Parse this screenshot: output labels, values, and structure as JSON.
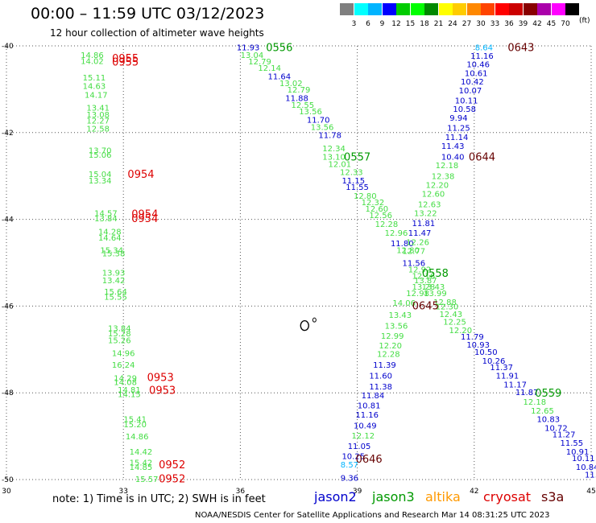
{
  "header": {
    "title": "00:00 – 11:59 UTC 03/12/2023",
    "subtitle": "12 hour collection of altimeter wave heights"
  },
  "colorbar": {
    "labels": [
      "3",
      "6",
      "9",
      "12",
      "15",
      "18",
      "21",
      "24",
      "27",
      "30",
      "33",
      "36",
      "39",
      "42",
      "45",
      "70"
    ],
    "colors": [
      "#7f7f7f",
      "#00ffff",
      "#00b4ff",
      "#0000ff",
      "#00cc00",
      "#00ff00",
      "#008800",
      "#ffff00",
      "#ffcc00",
      "#ff8800",
      "#ff4400",
      "#ff0000",
      "#cc0000",
      "#880000",
      "#aa00aa",
      "#ff00ff",
      "#000000"
    ],
    "unit": "(ft)"
  },
  "footer": {
    "note": "note: 1) Time is in UTC; 2) SWH is in feet",
    "credit": "NOAA/NESDIS Center for Satellite Applications and Research    Mar 14 08:31:25 UTC 2023",
    "satellites": [
      {
        "name": "jason2",
        "color": "#0000cc"
      },
      {
        "name": "jason3",
        "color": "#009900"
      },
      {
        "name": "altika",
        "color": "#ff9900"
      },
      {
        "name": "cryosat",
        "color": "#dd0000"
      },
      {
        "name": "s3a",
        "color": "#660000"
      }
    ]
  },
  "chart_data": {
    "type": "scatter",
    "title": "00:00 – 11:59 UTC 03/12/2023",
    "xlabel": "",
    "ylabel": "",
    "xlim": [
      30,
      45
    ],
    "ylim": [
      -50,
      -40
    ],
    "xticks": [
      "30",
      "33",
      "36",
      "39",
      "42",
      "45"
    ],
    "yticks": [
      "-40",
      "-42",
      "-44",
      "-46",
      "-48",
      "-50"
    ],
    "grid": "dotted",
    "land": [
      {
        "name": "small islands",
        "points": [
          [
            37.65,
            -46.45
          ],
          [
            37.9,
            -46.32
          ]
        ]
      }
    ],
    "series": [
      {
        "name": "cryosat",
        "color": "#dd0000",
        "label_color": "#44dd44",
        "times": [
          {
            "text": "0955",
            "lon": 33.05,
            "lat": -40.28
          },
          {
            "text": "0955",
            "lon": 33.05,
            "lat": -40.36
          },
          {
            "text": "0954",
            "lon": 33.45,
            "lat": -42.95
          },
          {
            "text": "0954",
            "lon": 33.55,
            "lat": -43.87
          },
          {
            "text": "0954",
            "lon": 33.55,
            "lat": -43.97
          },
          {
            "text": "0953",
            "lon": 33.95,
            "lat": -47.63
          },
          {
            "text": "0953",
            "lon": 34.0,
            "lat": -47.93
          },
          {
            "text": "0952",
            "lon": 34.25,
            "lat": -49.65
          },
          {
            "text": "0952",
            "lon": 34.25,
            "lat": -49.97
          }
        ],
        "points": [
          {
            "lon": 32.2,
            "lat": -40.2,
            "v": "14.86"
          },
          {
            "lon": 32.2,
            "lat": -40.34,
            "v": "14.02"
          },
          {
            "lon": 32.25,
            "lat": -40.72,
            "v": "15.11"
          },
          {
            "lon": 32.25,
            "lat": -40.92,
            "v": "14.63"
          },
          {
            "lon": 32.3,
            "lat": -41.12,
            "v": "14.17"
          },
          {
            "lon": 32.35,
            "lat": -41.42,
            "v": "13.41"
          },
          {
            "lon": 32.35,
            "lat": -41.58,
            "v": "13.08"
          },
          {
            "lon": 32.35,
            "lat": -41.72,
            "v": "12.27"
          },
          {
            "lon": 32.35,
            "lat": -41.9,
            "v": "12.58"
          },
          {
            "lon": 32.4,
            "lat": -42.4,
            "v": "13.70"
          },
          {
            "lon": 32.4,
            "lat": -42.5,
            "v": "15.06"
          },
          {
            "lon": 32.4,
            "lat": -42.95,
            "v": "15.04"
          },
          {
            "lon": 32.4,
            "lat": -43.1,
            "v": "13.34"
          },
          {
            "lon": 32.55,
            "lat": -43.85,
            "v": "14.57"
          },
          {
            "lon": 32.55,
            "lat": -43.97,
            "v": "13.84"
          },
          {
            "lon": 32.65,
            "lat": -44.28,
            "v": "14.28"
          },
          {
            "lon": 32.65,
            "lat": -44.42,
            "v": "14.64"
          },
          {
            "lon": 32.7,
            "lat": -44.7,
            "v": "15.34"
          },
          {
            "lon": 32.75,
            "lat": -44.78,
            "v": "15.38"
          },
          {
            "lon": 32.75,
            "lat": -45.22,
            "v": "13.93"
          },
          {
            "lon": 32.75,
            "lat": -45.4,
            "v": "13.42"
          },
          {
            "lon": 32.8,
            "lat": -45.66,
            "v": "15.64"
          },
          {
            "lon": 32.8,
            "lat": -45.78,
            "v": "15.55"
          },
          {
            "lon": 32.9,
            "lat": -46.5,
            "v": "13.84"
          },
          {
            "lon": 32.9,
            "lat": -46.62,
            "v": "15.28"
          },
          {
            "lon": 32.9,
            "lat": -46.78,
            "v": "15.26"
          },
          {
            "lon": 33.0,
            "lat": -47.08,
            "v": "14.96"
          },
          {
            "lon": 33.0,
            "lat": -47.35,
            "v": "16.24"
          },
          {
            "lon": 33.05,
            "lat": -47.65,
            "v": "14.29"
          },
          {
            "lon": 33.05,
            "lat": -47.75,
            "v": "14.08"
          },
          {
            "lon": 33.15,
            "lat": -47.92,
            "v": "14.81"
          },
          {
            "lon": 33.15,
            "lat": -48.02,
            "v": "14.15"
          },
          {
            "lon": 33.3,
            "lat": -48.6,
            "v": "15.41"
          },
          {
            "lon": 33.3,
            "lat": -48.72,
            "v": "15.20"
          },
          {
            "lon": 33.35,
            "lat": -49.0,
            "v": "14.86"
          },
          {
            "lon": 33.45,
            "lat": -49.35,
            "v": "14.42"
          },
          {
            "lon": 33.45,
            "lat": -49.6,
            "v": "15.42"
          },
          {
            "lon": 33.45,
            "lat": -49.7,
            "v": "14.85"
          },
          {
            "lon": 33.6,
            "lat": -49.98,
            "v": "15.57"
          }
        ]
      },
      {
        "name": "jason3",
        "color": "#009900",
        "times": [
          {
            "text": "0556",
            "lon": 37.0,
            "lat": -40.03
          },
          {
            "text": "0557",
            "lon": 39.0,
            "lat": -42.55
          },
          {
            "text": "0558",
            "lon": 41.0,
            "lat": -45.23
          },
          {
            "text": "0559",
            "lon": 43.9,
            "lat": -48.0
          }
        ],
        "points": [
          {
            "lon": 36.2,
            "lat": -40.03,
            "v": "11.93",
            "c": "#0000cc"
          },
          {
            "lon": 36.3,
            "lat": -40.2,
            "v": "13.04"
          },
          {
            "lon": 36.5,
            "lat": -40.35,
            "v": "12.79"
          },
          {
            "lon": 36.75,
            "lat": -40.5,
            "v": "12.14"
          },
          {
            "lon": 37.0,
            "lat": -40.7,
            "v": "11.64",
            "c": "#0000cc"
          },
          {
            "lon": 37.3,
            "lat": -40.85,
            "v": "13.02"
          },
          {
            "lon": 37.5,
            "lat": -41.0,
            "v": "12.79"
          },
          {
            "lon": 37.45,
            "lat": -41.2,
            "v": "11.88",
            "c": "#0000cc"
          },
          {
            "lon": 37.6,
            "lat": -41.35,
            "v": "12.55"
          },
          {
            "lon": 37.8,
            "lat": -41.5,
            "v": "13.56"
          },
          {
            "lon": 38.0,
            "lat": -41.7,
            "v": "11.70",
            "c": "#0000cc"
          },
          {
            "lon": 38.1,
            "lat": -41.86,
            "v": "13.56"
          },
          {
            "lon": 38.3,
            "lat": -42.05,
            "v": "11.78",
            "c": "#0000cc"
          },
          {
            "lon": 38.4,
            "lat": -42.36,
            "v": "12.34"
          },
          {
            "lon": 38.4,
            "lat": -42.55,
            "v": "13.10"
          },
          {
            "lon": 38.55,
            "lat": -42.72,
            "v": "12.01"
          },
          {
            "lon": 38.85,
            "lat": -42.9,
            "v": "12.33"
          },
          {
            "lon": 38.9,
            "lat": -43.1,
            "v": "11.15",
            "c": "#0000cc"
          },
          {
            "lon": 39.0,
            "lat": -43.25,
            "v": "11.55",
            "c": "#0000cc"
          },
          {
            "lon": 39.2,
            "lat": -43.45,
            "v": "12.80"
          },
          {
            "lon": 39.4,
            "lat": -43.6,
            "v": "12.32"
          },
          {
            "lon": 39.5,
            "lat": -43.75,
            "v": "12.60"
          },
          {
            "lon": 39.6,
            "lat": -43.9,
            "v": "12.56"
          },
          {
            "lon": 39.75,
            "lat": -44.1,
            "v": "12.28"
          },
          {
            "lon": 40.0,
            "lat": -44.3,
            "v": "12.96"
          },
          {
            "lon": 40.15,
            "lat": -44.55,
            "v": "11.80",
            "c": "#0000cc"
          },
          {
            "lon": 40.3,
            "lat": -44.7,
            "v": "12.80"
          },
          {
            "lon": 40.45,
            "lat": -45.0,
            "v": "11.56",
            "c": "#0000cc"
          },
          {
            "lon": 40.6,
            "lat": -45.15,
            "v": "12.92"
          },
          {
            "lon": 40.7,
            "lat": -45.3,
            "v": "12.16"
          },
          {
            "lon": 40.75,
            "lat": -45.4,
            "v": "13.87"
          },
          {
            "lon": 40.7,
            "lat": -45.55,
            "v": "13.28"
          },
          {
            "lon": 40.95,
            "lat": -45.55,
            "v": "13.43"
          },
          {
            "lon": 40.55,
            "lat": -45.7,
            "v": "12.98"
          },
          {
            "lon": 41.0,
            "lat": -45.7,
            "v": "13.99"
          },
          {
            "lon": 41.25,
            "lat": -45.9,
            "v": "12.88"
          },
          {
            "lon": 41.3,
            "lat": -46.0,
            "v": "12.30"
          },
          {
            "lon": 41.4,
            "lat": -46.18,
            "v": "12.43"
          },
          {
            "lon": 41.5,
            "lat": -46.35,
            "v": "12.25"
          },
          {
            "lon": 41.65,
            "lat": -46.55,
            "v": "12.20"
          },
          {
            "lon": 41.95,
            "lat": -46.7,
            "v": "11.79",
            "c": "#0000cc"
          },
          {
            "lon": 42.1,
            "lat": -46.88,
            "v": "10.93",
            "c": "#0000cc"
          },
          {
            "lon": 42.3,
            "lat": -47.05,
            "v": "10.50",
            "c": "#0000cc"
          },
          {
            "lon": 42.5,
            "lat": -47.25,
            "v": "10.26",
            "c": "#0000cc"
          },
          {
            "lon": 42.7,
            "lat": -47.4,
            "v": "11.37",
            "c": "#0000cc"
          },
          {
            "lon": 42.85,
            "lat": -47.6,
            "v": "11.91",
            "c": "#0000cc"
          },
          {
            "lon": 43.05,
            "lat": -47.8,
            "v": "11.17",
            "c": "#0000cc"
          },
          {
            "lon": 43.35,
            "lat": -47.98,
            "v": "11.87",
            "c": "#0000cc"
          },
          {
            "lon": 43.55,
            "lat": -48.2,
            "v": "12.18"
          },
          {
            "lon": 43.75,
            "lat": -48.4,
            "v": "12.65"
          },
          {
            "lon": 43.9,
            "lat": -48.6,
            "v": "10.83",
            "c": "#0000cc"
          },
          {
            "lon": 44.1,
            "lat": -48.8,
            "v": "10.72",
            "c": "#0000cc"
          },
          {
            "lon": 44.3,
            "lat": -48.95,
            "v": "11.27",
            "c": "#0000cc"
          },
          {
            "lon": 44.5,
            "lat": -49.15,
            "v": "11.55",
            "c": "#0000cc"
          },
          {
            "lon": 44.65,
            "lat": -49.35,
            "v": "10.91",
            "c": "#0000cc"
          },
          {
            "lon": 44.8,
            "lat": -49.5,
            "v": "10.11",
            "c": "#0000cc"
          },
          {
            "lon": 44.9,
            "lat": -49.7,
            "v": "10.84",
            "c": "#0000cc"
          },
          {
            "lon": 45.0,
            "lat": -49.88,
            "v": "11.",
            "c": "#0000cc"
          }
        ]
      },
      {
        "name": "s3a",
        "color": "#660000",
        "times": [
          {
            "text": "0643",
            "lon": 43.2,
            "lat": -40.03
          },
          {
            "text": "0644",
            "lon": 42.2,
            "lat": -42.55
          },
          {
            "text": "0645",
            "lon": 40.75,
            "lat": -45.98
          },
          {
            "text": "0646",
            "lon": 39.3,
            "lat": -49.52
          }
        ],
        "points": [
          {
            "lon": 42.25,
            "lat": -40.03,
            "v": "8.64",
            "c": "#00b4ff"
          },
          {
            "lon": 42.2,
            "lat": -40.22,
            "v": "11.16",
            "c": "#0000cc"
          },
          {
            "lon": 42.1,
            "lat": -40.42,
            "v": "10.46",
            "c": "#0000cc"
          },
          {
            "lon": 42.05,
            "lat": -40.62,
            "v": "10.61",
            "c": "#0000cc"
          },
          {
            "lon": 41.95,
            "lat": -40.82,
            "v": "10.42",
            "c": "#0000cc"
          },
          {
            "lon": 41.9,
            "lat": -41.02,
            "v": "10.07",
            "c": "#0000cc"
          },
          {
            "lon": 41.8,
            "lat": -41.25,
            "v": "10.11",
            "c": "#0000cc"
          },
          {
            "lon": 41.75,
            "lat": -41.45,
            "v": "10.58",
            "c": "#0000cc"
          },
          {
            "lon": 41.6,
            "lat": -41.65,
            "v": "9.94",
            "c": "#0000cc"
          },
          {
            "lon": 41.6,
            "lat": -41.88,
            "v": "11.25",
            "c": "#0000cc"
          },
          {
            "lon": 41.55,
            "lat": -42.1,
            "v": "11.14",
            "c": "#0000cc"
          },
          {
            "lon": 41.45,
            "lat": -42.3,
            "v": "11.43",
            "c": "#0000cc"
          },
          {
            "lon": 41.45,
            "lat": -42.55,
            "v": "10.40",
            "c": "#0000cc"
          },
          {
            "lon": 41.3,
            "lat": -42.75,
            "v": "12.18"
          },
          {
            "lon": 41.2,
            "lat": -43.0,
            "v": "12.38"
          },
          {
            "lon": 41.05,
            "lat": -43.2,
            "v": "12.20"
          },
          {
            "lon": 40.95,
            "lat": -43.4,
            "v": "12.60"
          },
          {
            "lon": 40.85,
            "lat": -43.65,
            "v": "12.63"
          },
          {
            "lon": 40.75,
            "lat": -43.85,
            "v": "13.22"
          },
          {
            "lon": 40.7,
            "lat": -44.08,
            "v": "11.81",
            "c": "#0000cc"
          },
          {
            "lon": 40.6,
            "lat": -44.3,
            "v": "11.47",
            "c": "#0000cc"
          },
          {
            "lon": 40.55,
            "lat": -44.52,
            "v": "12.26"
          },
          {
            "lon": 40.45,
            "lat": -44.72,
            "v": "12.77"
          },
          {
            "lon": 40.2,
            "lat": -45.92,
            "v": "14.06"
          },
          {
            "lon": 40.1,
            "lat": -46.2,
            "v": "13.43"
          },
          {
            "lon": 40.0,
            "lat": -46.45,
            "v": "13.56"
          },
          {
            "lon": 39.9,
            "lat": -46.68,
            "v": "12.99"
          },
          {
            "lon": 39.85,
            "lat": -46.9,
            "v": "12.20"
          },
          {
            "lon": 39.8,
            "lat": -47.1,
            "v": "12.28"
          },
          {
            "lon": 39.7,
            "lat": -47.35,
            "v": "11.39",
            "c": "#0000cc"
          },
          {
            "lon": 39.6,
            "lat": -47.6,
            "v": "11.60",
            "c": "#0000cc"
          },
          {
            "lon": 39.6,
            "lat": -47.85,
            "v": "11.38",
            "c": "#0000cc"
          },
          {
            "lon": 39.4,
            "lat": -48.05,
            "v": "11.84",
            "c": "#0000cc"
          },
          {
            "lon": 39.3,
            "lat": -48.28,
            "v": "10.81",
            "c": "#0000cc"
          },
          {
            "lon": 39.25,
            "lat": -48.5,
            "v": "11.16",
            "c": "#0000cc"
          },
          {
            "lon": 39.2,
            "lat": -48.75,
            "v": "10.49",
            "c": "#0000cc"
          },
          {
            "lon": 39.15,
            "lat": -48.98,
            "v": "12.12"
          },
          {
            "lon": 39.05,
            "lat": -49.22,
            "v": "11.05",
            "c": "#0000cc"
          },
          {
            "lon": 38.9,
            "lat": -49.45,
            "v": "10.25",
            "c": "#0000cc"
          },
          {
            "lon": 38.8,
            "lat": -49.65,
            "v": "8.57",
            "c": "#00b4ff"
          },
          {
            "lon": 38.8,
            "lat": -49.95,
            "v": "9.36",
            "c": "#0000cc"
          }
        ]
      }
    ]
  }
}
